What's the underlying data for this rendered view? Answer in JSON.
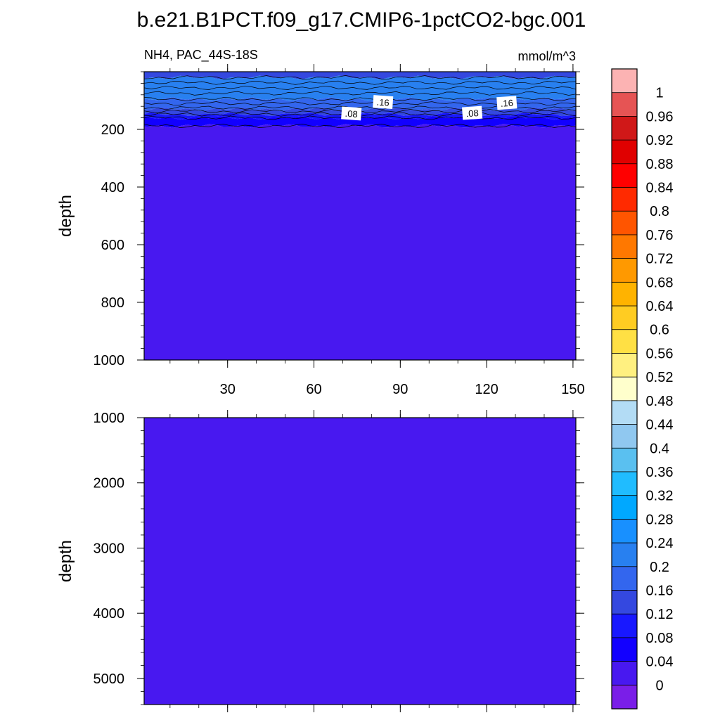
{
  "title": "b.e21.B1PCT.f09_g17.CMIP6-1pctCO2-bgc.001",
  "chart_data": {
    "type": "heatmap",
    "colorbar": {
      "labels": [
        "1",
        "0.96",
        "0.92",
        "0.88",
        "0.84",
        "0.8",
        "0.76",
        "0.72",
        "0.68",
        "0.64",
        "0.6",
        "0.56",
        "0.52",
        "0.48",
        "0.44",
        "0.4",
        "0.36",
        "0.32",
        "0.28",
        "0.24",
        "0.2",
        "0.16",
        "0.12",
        "0.08",
        "0.04",
        "0"
      ],
      "colors": [
        "#fcb3b3",
        "#e65454",
        "#d01818",
        "#e00000",
        "#ff0000",
        "#ff2a00",
        "#ff5500",
        "#ff7800",
        "#ff9900",
        "#ffb300",
        "#ffcc22",
        "#ffe044",
        "#fff080",
        "#ffffcc",
        "#b3dcf5",
        "#90c8f0",
        "#5ac0f0",
        "#20bcff",
        "#00a8ff",
        "#1890ff",
        "#2880f0",
        "#3366ee",
        "#3448e0",
        "#1818ff",
        "#1200ff",
        "#4818f0",
        "#7a1ee8"
      ]
    },
    "panels": [
      {
        "subtitle_left": "NH4, PAC_44S-18S",
        "subtitle_right": "mmol/m^3",
        "ylabel": "depth",
        "ylim": [
          0,
          1000
        ],
        "yticks": [
          "200",
          "400",
          "600",
          "800",
          "1000"
        ],
        "xlim": [
          1,
          151
        ],
        "xticks": [
          "30",
          "60",
          "90",
          "120",
          "150"
        ],
        "bands": [
          {
            "depth_top": 0,
            "depth_bottom": 20,
            "color": "#3448e0"
          },
          {
            "depth_top": 20,
            "depth_bottom": 95,
            "color": "#2880f0"
          },
          {
            "depth_top": 95,
            "depth_bottom": 130,
            "color": "#3366ee"
          },
          {
            "depth_top": 130,
            "depth_bottom": 148,
            "color": "#3448e0"
          },
          {
            "depth_top": 148,
            "depth_bottom": 160,
            "color": "#1818ff"
          },
          {
            "depth_top": 160,
            "depth_bottom": 188,
            "color": "#1200ff"
          },
          {
            "depth_top": 188,
            "depth_bottom": 1000,
            "color": "#4818f0"
          }
        ],
        "contours": [
          20,
          38,
          56,
          75,
          95,
          110,
          125,
          137,
          148,
          160,
          188
        ],
        "contour_labels": [
          {
            "text": ".16",
            "x": 84,
            "depth": 105
          },
          {
            "text": ".16",
            "x": 127,
            "depth": 108
          },
          {
            "text": ".08",
            "x": 73,
            "depth": 145
          },
          {
            "text": ".08",
            "x": 115,
            "depth": 143
          }
        ]
      },
      {
        "ylabel": "depth",
        "ylim": [
          1000,
          5400
        ],
        "yticks": [
          "1000",
          "2000",
          "3000",
          "4000",
          "5000"
        ],
        "xlim": [
          1,
          151
        ],
        "bands": [
          {
            "depth_top": 1000,
            "depth_bottom": 5400,
            "color": "#4818f0"
          }
        ]
      }
    ]
  }
}
